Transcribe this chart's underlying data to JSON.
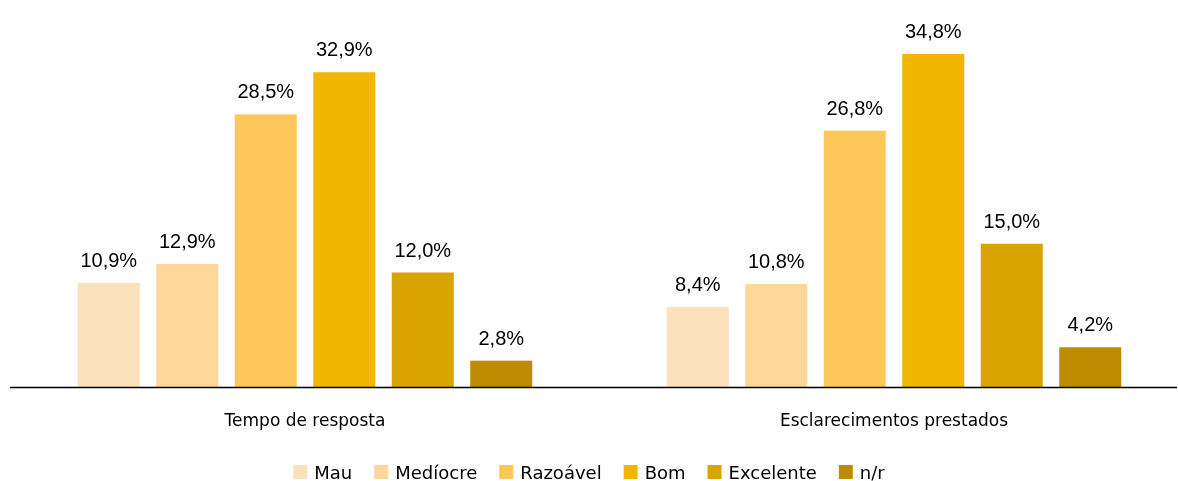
{
  "chart_data": {
    "type": "bar",
    "categories": [
      "Tempo de resposta",
      "Esclarecimentos prestados"
    ],
    "series": [
      {
        "name": "Mau",
        "color": "#fde0bc",
        "values": [
          10.9,
          8.4
        ],
        "value_labels": [
          "10,9%",
          "8,4%"
        ]
      },
      {
        "name": "Medíocre",
        "color": "#fed699",
        "values": [
          12.9,
          10.8
        ],
        "value_labels": [
          "12,9%",
          "10,8%"
        ]
      },
      {
        "name": "Razoável",
        "color": "#fec75a",
        "values": [
          28.5,
          26.8
        ],
        "value_labels": [
          "28,5%",
          "26,8%"
        ]
      },
      {
        "name": "Bom",
        "color": "#f1b700",
        "values": [
          32.9,
          34.8
        ],
        "value_labels": [
          "32,9%",
          "34,8%"
        ]
      },
      {
        "name": "Excelente",
        "color": "#daa400",
        "values": [
          12.0,
          15.0
        ],
        "value_labels": [
          "12,0%",
          "15,0%"
        ]
      },
      {
        "name": "n/r",
        "color": "#be8c00",
        "values": [
          2.8,
          4.2
        ],
        "value_labels": [
          "2,8%",
          "4,2%"
        ]
      }
    ],
    "legend": "bottom",
    "tick_labels": "x"
  }
}
